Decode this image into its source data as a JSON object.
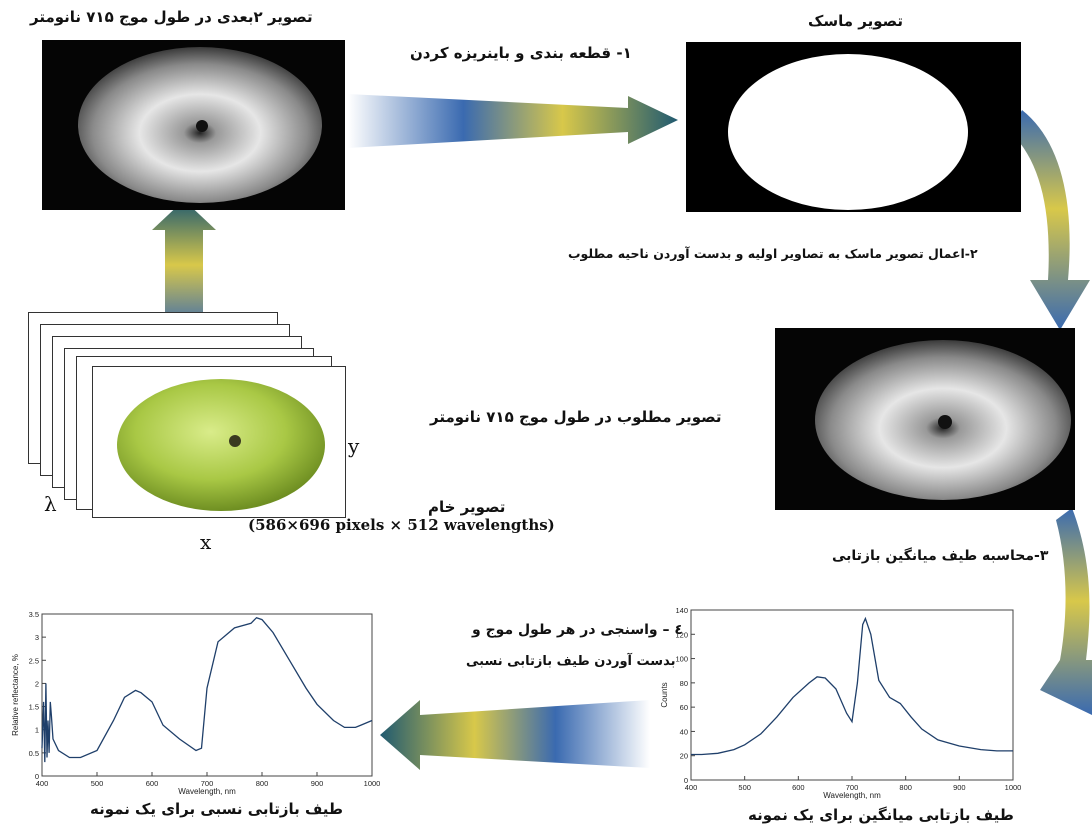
{
  "labels": {
    "top_left_title": "تصویر ۲بعدی در طول موج ۷۱۵ نانومتر",
    "mask_title": "تصویر ماسک",
    "step1": "۱- قطعه بندی  و باینریزه کردن",
    "step2": "۲-اعمال تصویر ماسک به تصاویر اولیه و بدست آوردن ناحیه مطلوب",
    "desired_image": "تصویر مطلوب در طول موج ۷۱۵ نانومتر",
    "raw_image": "تصویر خام",
    "raw_dims": "(586×696 pixels × 512 wavelengths)",
    "step3": "۳-محاسبه طیف میانگین بازتابی",
    "step4_line1": "٤ – واسنجی در هر طول موج و",
    "step4_line2": "بدست آوردن طیف بازتابی نسبی",
    "caption_relative": "طیف بازتابی نسبی برای یک نمونه",
    "caption_mean": "طیف بازتابی میانگین برای یک نمونه",
    "axis_lambda": "λ",
    "axis_x": "x",
    "axis_y": "y"
  },
  "chart_data": [
    {
      "type": "line",
      "name": "relative-reflectance",
      "xlabel": "Wavelength, nm",
      "ylabel": "Relative reflectance, %",
      "xlim": [
        400,
        1000
      ],
      "ylim": [
        0,
        3.5
      ],
      "xticks": [
        400,
        500,
        600,
        700,
        800,
        900,
        1000
      ],
      "yticks": [
        0,
        0.5,
        1,
        1.5,
        2,
        2.5,
        3,
        3.5
      ],
      "x": [
        400,
        403,
        405,
        407,
        409,
        411,
        413,
        415,
        417,
        420,
        430,
        450,
        470,
        500,
        530,
        550,
        570,
        580,
        600,
        620,
        650,
        680,
        690,
        700,
        720,
        750,
        780,
        790,
        800,
        820,
        850,
        880,
        900,
        930,
        950,
        970,
        980,
        1000
      ],
      "y": [
        0.6,
        1.6,
        0.3,
        2.0,
        0.4,
        1.2,
        0.5,
        1.6,
        1.3,
        0.8,
        0.55,
        0.4,
        0.4,
        0.55,
        1.2,
        1.7,
        1.85,
        1.8,
        1.6,
        1.1,
        0.8,
        0.55,
        0.6,
        1.9,
        2.9,
        3.2,
        3.3,
        3.42,
        3.38,
        3.1,
        2.5,
        1.9,
        1.55,
        1.2,
        1.05,
        1.05,
        1.1,
        1.2
      ]
    },
    {
      "type": "line",
      "name": "mean-reflectance",
      "xlabel": "Wavelength, nm",
      "ylabel": "Counts",
      "xlim": [
        400,
        1000
      ],
      "ylim": [
        0,
        140
      ],
      "xticks": [
        400,
        500,
        600,
        700,
        800,
        900,
        1000
      ],
      "yticks": [
        0,
        20,
        40,
        60,
        80,
        100,
        120,
        140
      ],
      "x": [
        400,
        420,
        450,
        480,
        500,
        530,
        560,
        590,
        620,
        635,
        650,
        670,
        690,
        700,
        710,
        720,
        725,
        735,
        750,
        770,
        790,
        810,
        830,
        860,
        900,
        940,
        970,
        1000
      ],
      "y": [
        21,
        21,
        22,
        25,
        29,
        38,
        52,
        68,
        80,
        85,
        84,
        75,
        55,
        48,
        80,
        128,
        133,
        120,
        82,
        68,
        63,
        52,
        42,
        33,
        28,
        25,
        24,
        24
      ]
    }
  ],
  "colors": {
    "arrow_blue": "#3a6ab0",
    "arrow_yellow": "#d8c84a",
    "arrow_teal": "#205a70",
    "apple_green": "#a9c845",
    "curve": "#1f3f6a"
  }
}
